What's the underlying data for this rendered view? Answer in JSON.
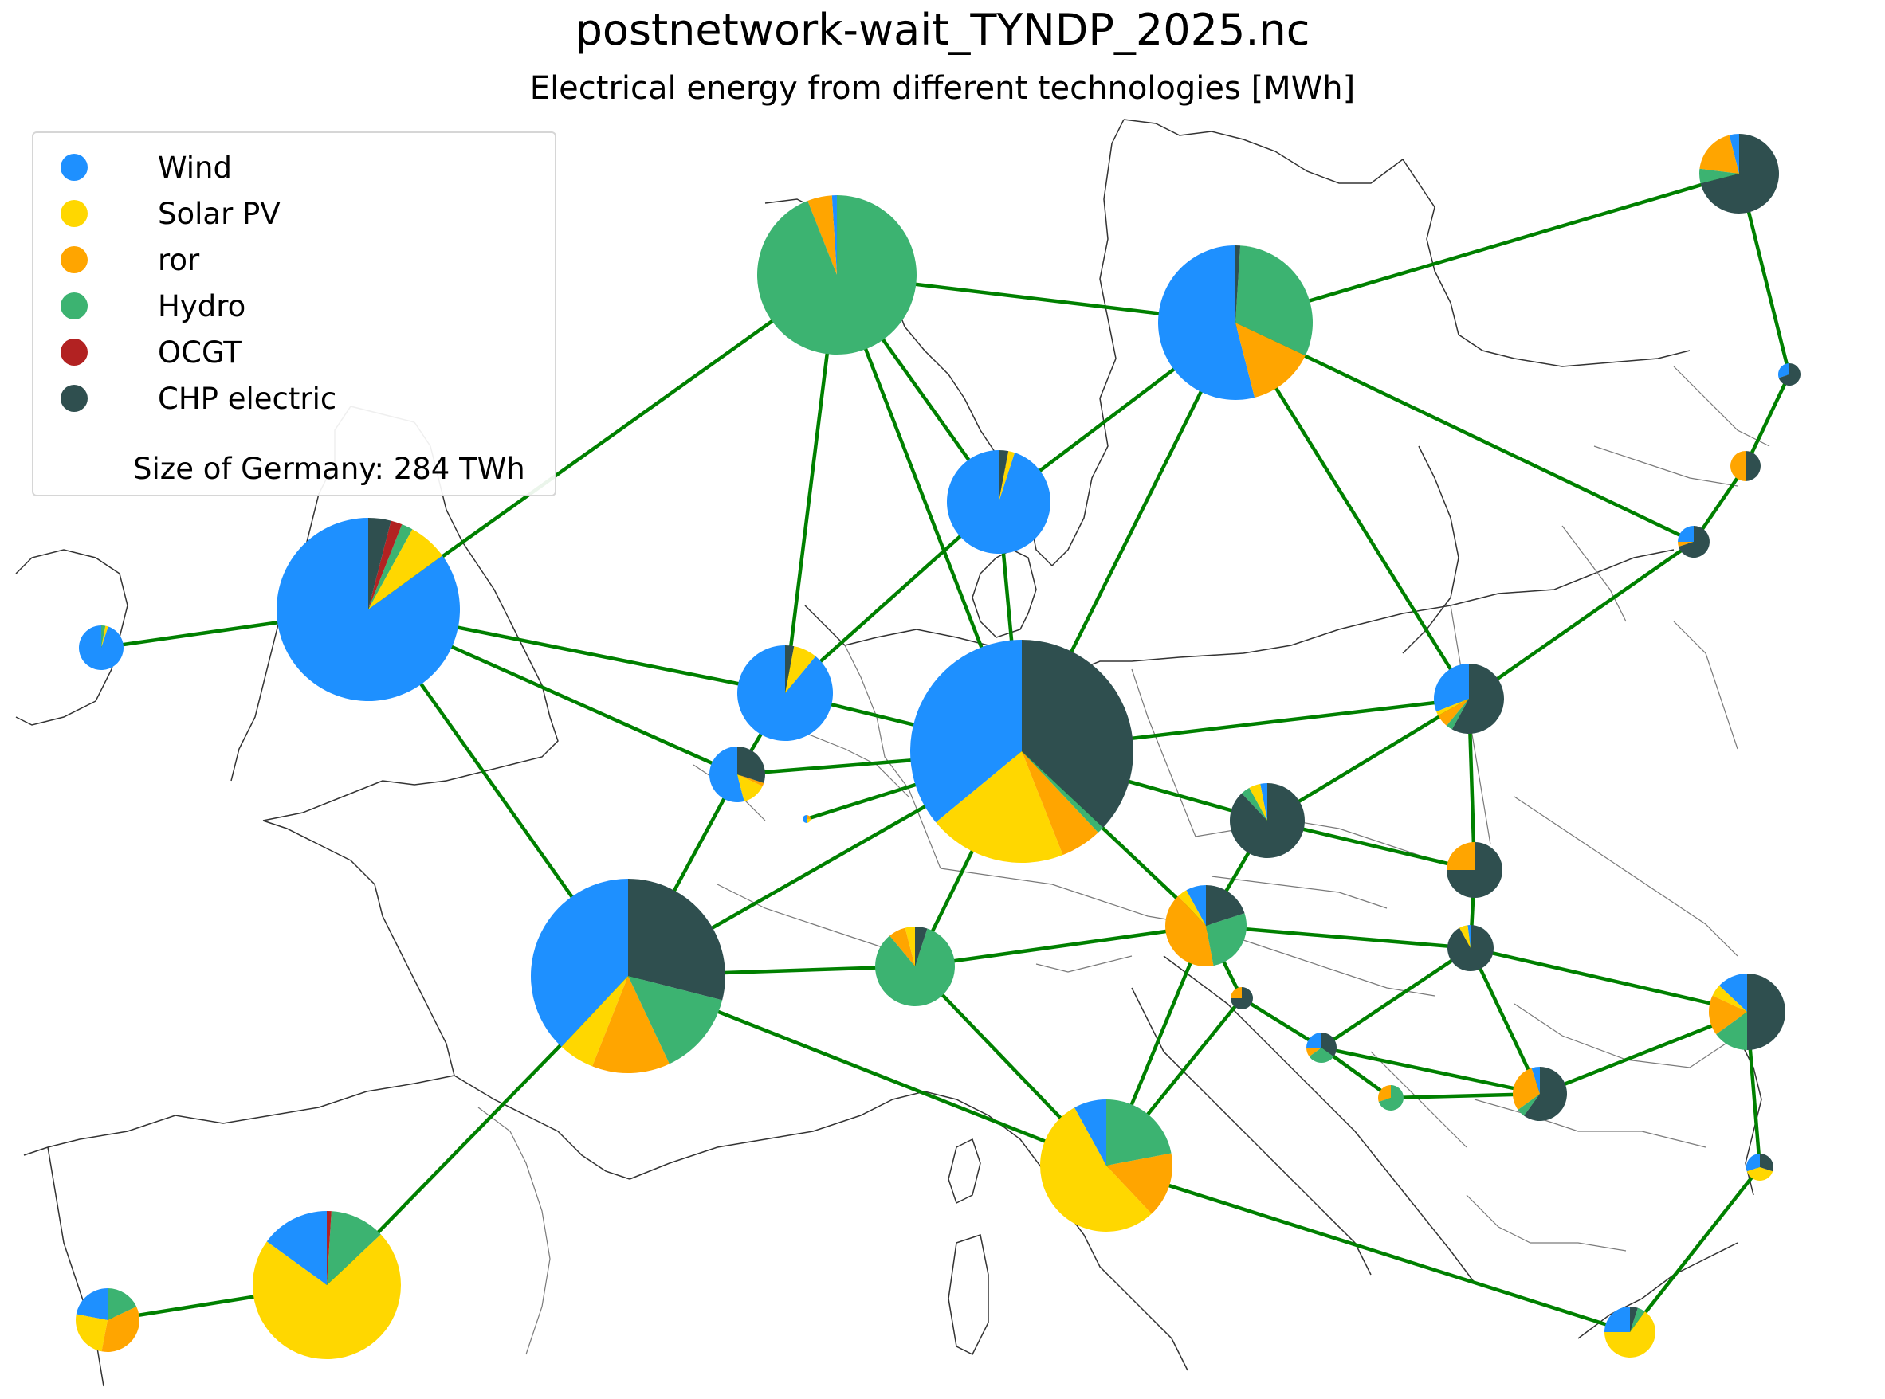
{
  "title": "postnetwork-wait_TYNDP_2025.nc",
  "subtitle": "Electrical energy from different technologies [MWh]",
  "legend": {
    "items": [
      {
        "label": "Wind",
        "color": "#1e90ff"
      },
      {
        "label": "Solar PV",
        "color": "#ffd700"
      },
      {
        "label": "ror",
        "color": "#ffa500"
      },
      {
        "label": "Hydro",
        "color": "#3cb371"
      },
      {
        "label": "OCGT",
        "color": "#b22222"
      },
      {
        "label": "CHP electric",
        "color": "#2f4f4f"
      }
    ],
    "note": "Size of Germany: 284 TWh"
  },
  "colors": {
    "Wind": "#1e90ff",
    "Solar PV": "#ffd700",
    "ror": "#ffa500",
    "Hydro": "#3cb371",
    "OCGT": "#b22222",
    "CHP electric": "#2f4f4f",
    "link": "#008000",
    "coast": "#333333",
    "border": "#7a7a7a"
  },
  "nodes": {
    "NO": {
      "share": {
        "Wind": 0.01,
        "ror": 0.05,
        "Hydro": 0.94
      }
    },
    "SE": {
      "share": {
        "CHP electric": 0.01,
        "Hydro": 0.31,
        "ror": 0.14,
        "Wind": 0.54
      }
    },
    "FI": {
      "share": {
        "Wind": 0.04,
        "ror": 0.19,
        "Hydro": 0.06,
        "CHP electric": 0.71
      }
    },
    "EE": {
      "share": {
        "Wind": 0.3,
        "CHP electric": 0.7
      }
    },
    "LV": {
      "share": {
        "ror": 0.5,
        "CHP electric": 0.5
      }
    },
    "LT": {
      "share": {
        "Wind": 0.25,
        "ror": 0.05,
        "CHP electric": 0.7
      }
    },
    "DK": {
      "share": {
        "CHP electric": 0.03,
        "Solar PV": 0.02,
        "Wind": 0.95
      }
    },
    "GB": {
      "share": {
        "CHP electric": 0.04,
        "OCGT": 0.02,
        "Hydro": 0.02,
        "Solar PV": 0.07,
        "Wind": 0.85
      }
    },
    "IE": {
      "share": {
        "Hydro": 0.03,
        "Solar PV": 0.02,
        "Wind": 0.95
      }
    },
    "NL": {
      "share": {
        "CHP electric": 0.03,
        "Solar PV": 0.08,
        "Wind": 0.89
      }
    },
    "BE": {
      "share": {
        "CHP electric": 0.3,
        "Solar PV": 0.14,
        "ror": 0.02,
        "Wind": 0.54
      }
    },
    "LU": {
      "share": {
        "Solar PV": 0.25,
        "ror": 0.25,
        "Wind": 0.5
      }
    },
    "DE": {
      "share": {
        "CHP electric": 0.37,
        "Hydro": 0.01,
        "ror": 0.06,
        "Solar PV": 0.2,
        "Wind": 0.36
      }
    },
    "PL": {
      "share": {
        "CHP electric": 0.58,
        "Hydro": 0.03,
        "ror": 0.06,
        "Solar PV": 0.02,
        "Wind": 0.31
      }
    },
    "CZ": {
      "share": {
        "CHP electric": 0.88,
        "Hydro": 0.04,
        "Solar PV": 0.05,
        "Wind": 0.03
      }
    },
    "SK": {
      "share": {
        "CHP electric": 0.75,
        "ror": 0.25
      }
    },
    "AT": {
      "share": {
        "CHP electric": 0.2,
        "Hydro": 0.27,
        "ror": 0.41,
        "Solar PV": 0.04,
        "Wind": 0.08
      }
    },
    "HU": {
      "share": {
        "CHP electric": 0.92,
        "Solar PV": 0.06,
        "Wind": 0.02
      }
    },
    "CH": {
      "share": {
        "CHP electric": 0.05,
        "Hydro": 0.84,
        "ror": 0.07,
        "Solar PV": 0.04
      }
    },
    "FR": {
      "share": {
        "CHP electric": 0.29,
        "Hydro": 0.14,
        "ror": 0.13,
        "Solar PV": 0.06,
        "Wind": 0.38
      }
    },
    "SI": {
      "share": {
        "CHP electric": 0.75,
        "ror": 0.25
      }
    },
    "HR": {
      "share": {
        "CHP electric": 0.35,
        "Hydro": 0.3,
        "ror": 0.1,
        "Wind": 0.25
      }
    },
    "BA": {
      "share": {
        "Hydro": 0.7,
        "ror": 0.3
      }
    },
    "RS": {
      "share": {
        "CHP electric": 0.6,
        "Hydro": 0.05,
        "ror": 0.3,
        "Wind": 0.05
      }
    },
    "RO": {
      "share": {
        "CHP electric": 0.5,
        "Hydro": 0.15,
        "ror": 0.17,
        "Solar PV": 0.05,
        "Wind": 0.13
      }
    },
    "BG": {
      "share": {
        "CHP electric": 0.3,
        "Solar PV": 0.4,
        "Wind": 0.3
      }
    },
    "IT": {
      "share": {
        "Hydro": 0.22,
        "ror": 0.16,
        "Solar PV": 0.54,
        "Wind": 0.08
      }
    },
    "GR": {
      "share": {
        "CHP electric": 0.05,
        "Hydro": 0.05,
        "Solar PV": 0.65,
        "Wind": 0.25
      }
    },
    "ES": {
      "share": {
        "Hydro": 0.12,
        "OCGT": 0.01,
        "Solar PV": 0.72,
        "Wind": 0.15
      }
    },
    "PT": {
      "share": {
        "Hydro": 0.18,
        "ror": 0.35,
        "Solar PV": 0.25,
        "Wind": 0.22
      }
    }
  }
}
